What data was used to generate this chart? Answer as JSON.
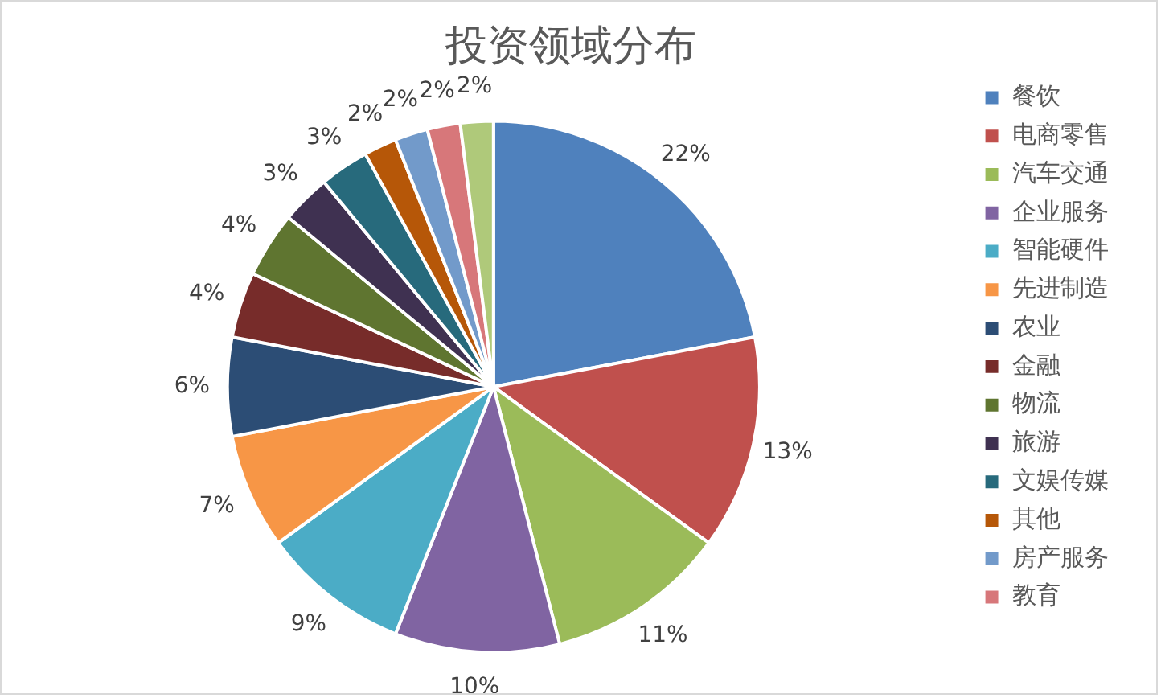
{
  "chart_data": {
    "type": "pie",
    "title": "投资领域分布",
    "categories": [
      "餐饮",
      "电商零售",
      "汽车交通",
      "企业服务",
      "智能硬件",
      "先进制造",
      "农业",
      "金融",
      "物流",
      "旅游",
      "文娱传媒",
      "其他",
      "房产服务",
      "教育",
      null
    ],
    "values": [
      22,
      13,
      11,
      10,
      9,
      7,
      6,
      4,
      4,
      3,
      3,
      2,
      2,
      2,
      2
    ],
    "value_labels": [
      "22%",
      "13%",
      "11%",
      "10%",
      "9%",
      "7%",
      "6%",
      "4%",
      "4%",
      "3%",
      "3%",
      "2%",
      "2%",
      "2%",
      "2%"
    ],
    "colors": [
      "#4f81bd",
      "#c0504d",
      "#9bbb59",
      "#8064a2",
      "#4bacc6",
      "#f79646",
      "#2c4d75",
      "#772c2a",
      "#5f7530",
      "#3f3151",
      "#276a7c",
      "#b65708",
      "#729aca",
      "#d7777a",
      "#afc97a"
    ],
    "legend": "right"
  }
}
